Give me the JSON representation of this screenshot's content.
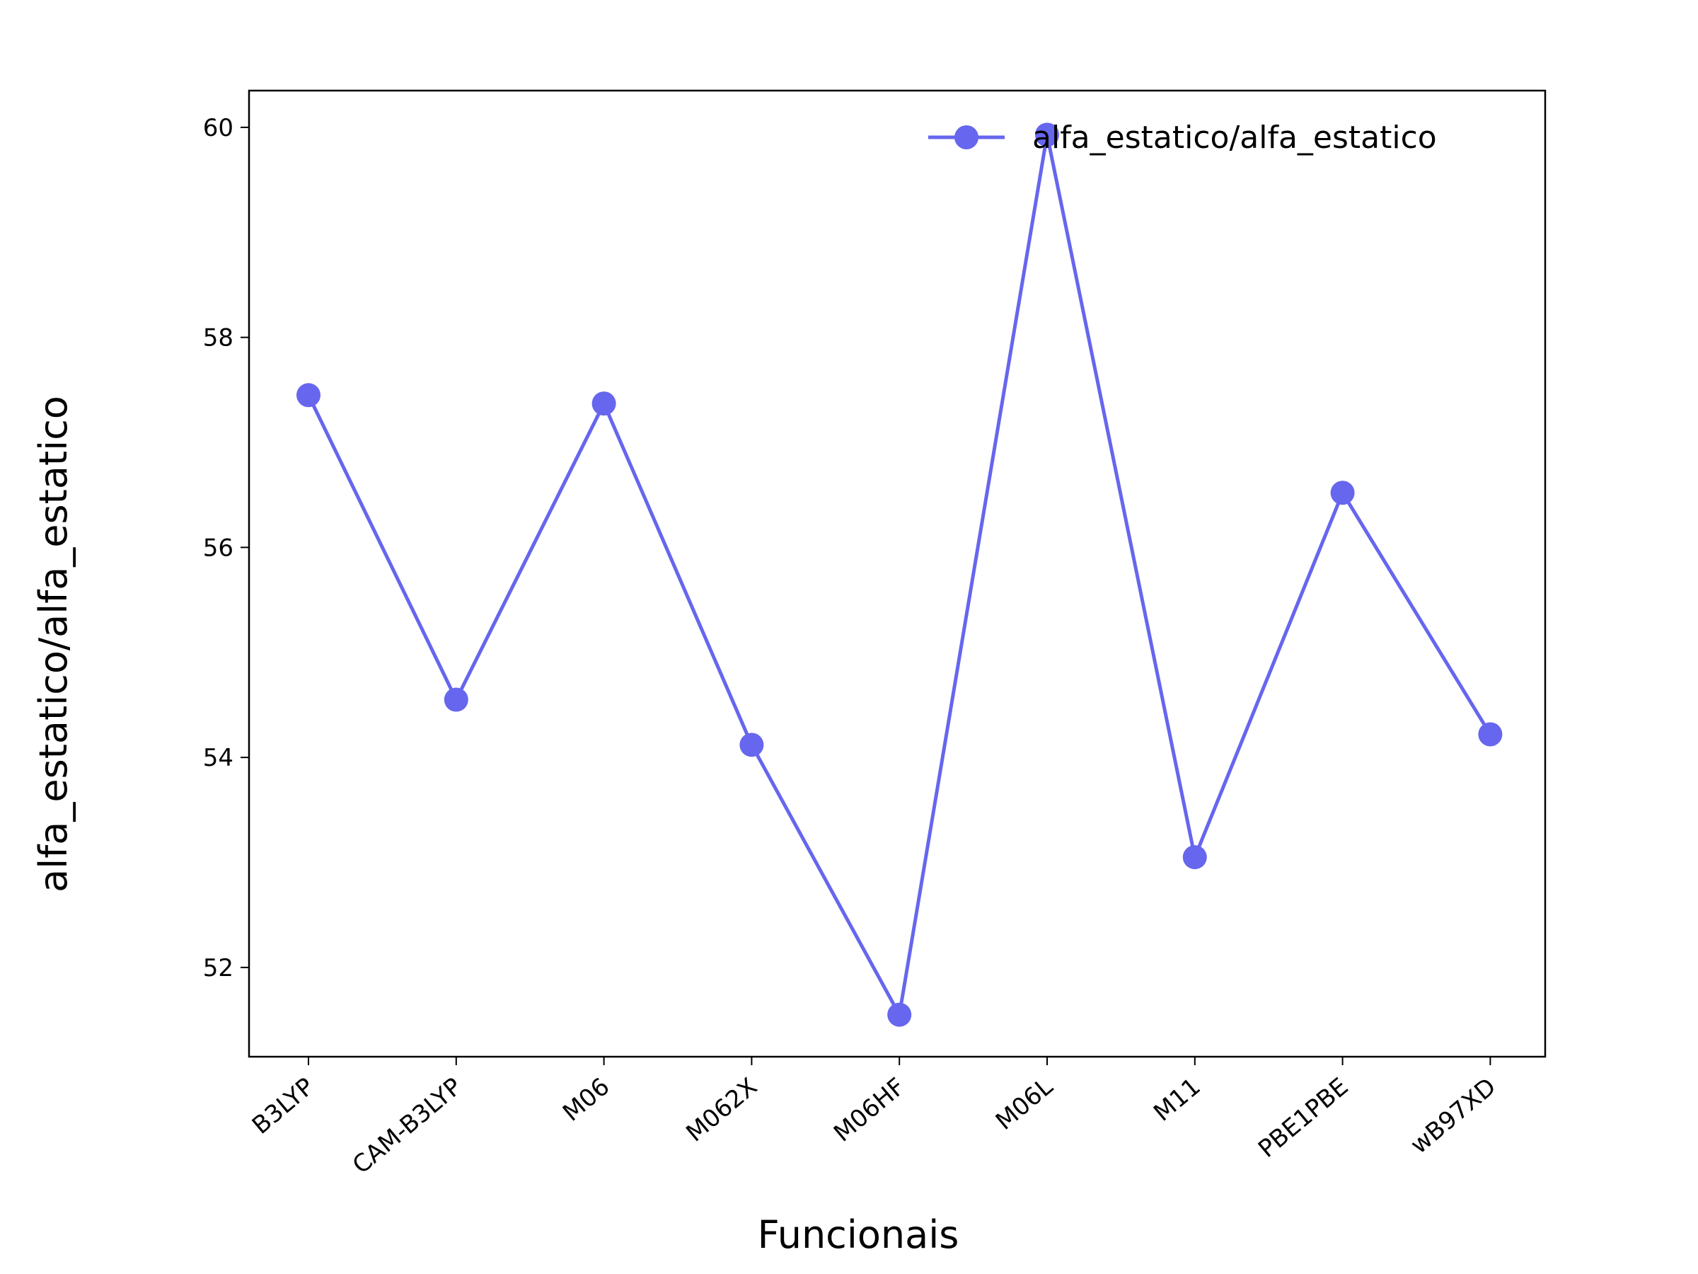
{
  "chart_data": {
    "type": "line",
    "title": "",
    "xlabel": "Funcionais",
    "ylabel": "alfa_estatico/alfa_estatico",
    "categories": [
      "B3LYP",
      "CAM-B3LYP",
      "M06",
      "M062X",
      "M06HF",
      "M06L",
      "M11",
      "PBE1PBE",
      "wB97XD"
    ],
    "series": [
      {
        "name": "alfa_estatico/alfa_estatico",
        "values": [
          57.45,
          54.55,
          57.37,
          54.12,
          51.55,
          59.93,
          53.05,
          56.52,
          54.22
        ],
        "color": "#6666ee"
      }
    ],
    "ylim": [
      51.15,
      60.35
    ],
    "yticks": [
      52,
      54,
      56,
      58,
      60
    ],
    "grid": false,
    "legend_position": "top-right"
  }
}
